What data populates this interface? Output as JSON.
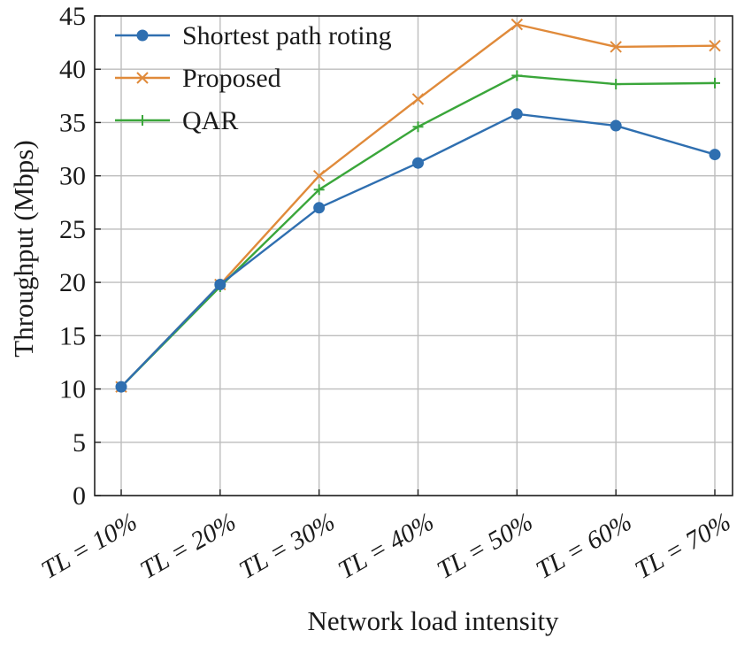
{
  "chart_data": {
    "type": "line",
    "title": "",
    "xlabel": "Network load intensity",
    "ylabel": "Throughput (Mbps)",
    "categories": [
      "TL = 10%",
      "TL = 20%",
      "TL = 30%",
      "TL = 40%",
      "TL = 50%",
      "TL = 60%",
      "TL = 70%"
    ],
    "ylim": [
      0,
      45
    ],
    "yticks": [
      0,
      5,
      10,
      15,
      20,
      25,
      30,
      35,
      40,
      45
    ],
    "grid": true,
    "legend_position": "top-left",
    "series": [
      {
        "name": "Shortest path roting",
        "color": "#2f6fb0",
        "marker": "circle",
        "values": [
          10.2,
          19.8,
          27.0,
          31.2,
          35.8,
          34.7,
          32.0
        ]
      },
      {
        "name": "Proposed",
        "color": "#e08a3a",
        "marker": "x",
        "values": [
          10.2,
          19.8,
          30.0,
          37.2,
          44.2,
          42.1,
          42.2
        ]
      },
      {
        "name": "QAR",
        "color": "#3aa63a",
        "marker": "plus",
        "values": [
          10.2,
          19.6,
          28.7,
          34.6,
          39.4,
          38.6,
          38.7
        ]
      }
    ]
  }
}
